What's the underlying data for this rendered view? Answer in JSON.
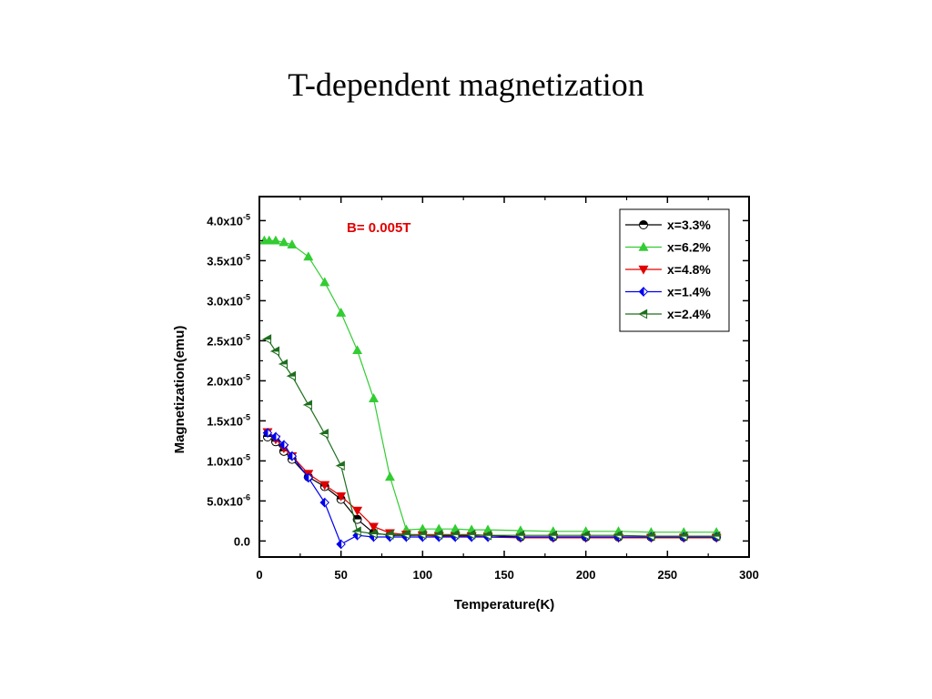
{
  "slide": {
    "title": "T-dependent magnetization"
  },
  "colors": {
    "black": "#000000",
    "green": "#33cc33",
    "red": "#e00000",
    "blue": "#0000ee",
    "darkgreen": "#1e6e1e",
    "annotation": "#e00000"
  },
  "chart_data": {
    "type": "line",
    "title": "",
    "annotation": "B= 0.005T",
    "xlabel": "Temperature(K)",
    "ylabel": "Magnetization(emu)",
    "xlim": [
      0,
      300
    ],
    "ylim": [
      -2e-06,
      4.3e-05
    ],
    "x_ticks": [
      0,
      50,
      100,
      150,
      200,
      250,
      300
    ],
    "x_tick_labels": [
      "0",
      "50",
      "100",
      "150",
      "200",
      "250",
      "300"
    ],
    "y_ticks": [
      0,
      5e-06,
      1e-05,
      1.5e-05,
      2e-05,
      2.5e-05,
      3e-05,
      3.5e-05,
      4e-05
    ],
    "y_tick_labels": [
      {
        "mantissa": "0.0",
        "exp": ""
      },
      {
        "mantissa": "5.0x10",
        "exp": "-6"
      },
      {
        "mantissa": "1.0x10",
        "exp": "-5"
      },
      {
        "mantissa": "1.5x10",
        "exp": "-5"
      },
      {
        "mantissa": "2.0x10",
        "exp": "-5"
      },
      {
        "mantissa": "2.5x10",
        "exp": "-5"
      },
      {
        "mantissa": "3.0x10",
        "exp": "-5"
      },
      {
        "mantissa": "3.5x10",
        "exp": "-5"
      },
      {
        "mantissa": "4.0x10",
        "exp": "-5"
      }
    ],
    "grid": false,
    "legend_position": "top-right",
    "series": [
      {
        "name": "x=3.3%",
        "color": "#000000",
        "marker": "half-circle",
        "points": [
          [
            5,
            1.3e-05
          ],
          [
            10,
            1.24e-05
          ],
          [
            15,
            1.12e-05
          ],
          [
            20,
            1.02e-05
          ],
          [
            30,
            8e-06
          ],
          [
            40,
            6.8e-06
          ],
          [
            50,
            5.2e-06
          ],
          [
            60,
            2.7e-06
          ],
          [
            70,
            1e-06
          ],
          [
            80,
            7e-07
          ],
          [
            90,
            7e-07
          ],
          [
            100,
            7e-07
          ],
          [
            110,
            7e-07
          ],
          [
            120,
            7e-07
          ],
          [
            130,
            7e-07
          ],
          [
            140,
            7e-07
          ],
          [
            160,
            5e-07
          ],
          [
            180,
            5e-07
          ],
          [
            200,
            5e-07
          ],
          [
            220,
            5e-07
          ],
          [
            240,
            5e-07
          ],
          [
            260,
            5e-07
          ],
          [
            280,
            5e-07
          ]
        ]
      },
      {
        "name": "x=6.2%",
        "color": "#33cc33",
        "marker": "triangle-up",
        "points": [
          [
            3,
            3.75e-05
          ],
          [
            6,
            3.75e-05
          ],
          [
            10,
            3.75e-05
          ],
          [
            15,
            3.73e-05
          ],
          [
            20,
            3.7e-05
          ],
          [
            30,
            3.55e-05
          ],
          [
            40,
            3.23e-05
          ],
          [
            50,
            2.85e-05
          ],
          [
            60,
            2.38e-05
          ],
          [
            70,
            1.78e-05
          ],
          [
            80,
            8e-06
          ],
          [
            90,
            1.4e-06
          ],
          [
            100,
            1.5e-06
          ],
          [
            110,
            1.5e-06
          ],
          [
            120,
            1.5e-06
          ],
          [
            130,
            1.4e-06
          ],
          [
            140,
            1.4e-06
          ],
          [
            160,
            1.3e-06
          ],
          [
            180,
            1.2e-06
          ],
          [
            200,
            1.2e-06
          ],
          [
            220,
            1.2e-06
          ],
          [
            240,
            1.1e-06
          ],
          [
            260,
            1.1e-06
          ],
          [
            280,
            1.1e-06
          ]
        ]
      },
      {
        "name": "x=4.8%",
        "color": "#e00000",
        "marker": "triangle-down",
        "points": [
          [
            5,
            1.36e-05
          ],
          [
            10,
            1.27e-05
          ],
          [
            15,
            1.16e-05
          ],
          [
            20,
            1.06e-05
          ],
          [
            30,
            8.4e-06
          ],
          [
            40,
            7e-06
          ],
          [
            50,
            5.6e-06
          ],
          [
            60,
            3.8e-06
          ],
          [
            70,
            1.8e-06
          ],
          [
            80,
            1e-06
          ],
          [
            90,
            8e-07
          ],
          [
            100,
            7e-07
          ],
          [
            110,
            6e-07
          ],
          [
            120,
            6e-07
          ],
          [
            130,
            6e-07
          ],
          [
            140,
            5e-07
          ],
          [
            160,
            4e-07
          ],
          [
            180,
            4e-07
          ],
          [
            200,
            4e-07
          ],
          [
            220,
            4e-07
          ],
          [
            240,
            4e-07
          ],
          [
            260,
            4e-07
          ],
          [
            280,
            4e-07
          ]
        ]
      },
      {
        "name": "x=1.4%",
        "color": "#0000ee",
        "marker": "diamond",
        "points": [
          [
            5,
            1.35e-05
          ],
          [
            10,
            1.3e-05
          ],
          [
            15,
            1.2e-05
          ],
          [
            20,
            1.06e-05
          ],
          [
            30,
            7.9e-06
          ],
          [
            40,
            4.8e-06
          ],
          [
            50,
            -4e-07
          ],
          [
            60,
            7e-07
          ],
          [
            70,
            5e-07
          ],
          [
            80,
            5e-07
          ],
          [
            90,
            5e-07
          ],
          [
            100,
            5e-07
          ],
          [
            110,
            5e-07
          ],
          [
            120,
            5e-07
          ],
          [
            130,
            5e-07
          ],
          [
            140,
            5e-07
          ],
          [
            160,
            5e-07
          ],
          [
            180,
            5e-07
          ],
          [
            200,
            5e-07
          ],
          [
            220,
            5e-07
          ],
          [
            240,
            5e-07
          ],
          [
            260,
            5e-07
          ],
          [
            280,
            5e-07
          ]
        ]
      },
      {
        "name": "x=2.4%",
        "color": "#1e6e1e",
        "marker": "triangle-left",
        "points": [
          [
            5,
            2.52e-05
          ],
          [
            10,
            2.37e-05
          ],
          [
            15,
            2.21e-05
          ],
          [
            20,
            2.06e-05
          ],
          [
            30,
            1.7e-05
          ],
          [
            40,
            1.34e-05
          ],
          [
            50,
            9.4e-06
          ],
          [
            60,
            1.2e-06
          ],
          [
            70,
            9e-07
          ],
          [
            80,
            8e-07
          ],
          [
            90,
            8e-07
          ],
          [
            100,
            8e-07
          ],
          [
            110,
            8e-07
          ],
          [
            120,
            8e-07
          ],
          [
            130,
            8e-07
          ],
          [
            140,
            7e-07
          ],
          [
            160,
            7e-07
          ],
          [
            180,
            7e-07
          ],
          [
            200,
            7e-07
          ],
          [
            220,
            7e-07
          ],
          [
            240,
            6e-07
          ],
          [
            260,
            6e-07
          ],
          [
            280,
            6e-07
          ]
        ]
      }
    ]
  }
}
